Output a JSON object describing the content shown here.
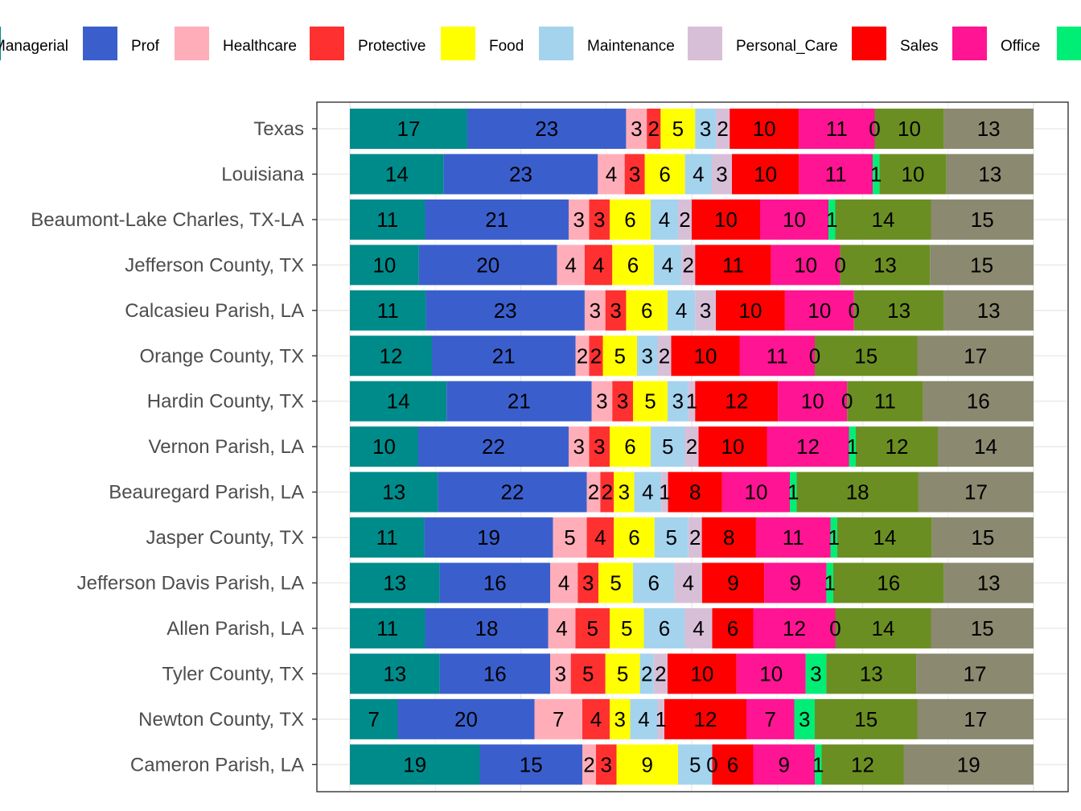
{
  "chart_data": {
    "type": "bar",
    "orientation": "horizontal",
    "stacked": true,
    "normalized": true,
    "legend_position": "top",
    "grid": true,
    "series_names": [
      "Managerial",
      "Prof",
      "Healthcare",
      "Protective",
      "Food",
      "Maintenance",
      "Personal_Care",
      "Sales",
      "Office",
      "",
      "",
      ""
    ],
    "colors": [
      "#008B8B",
      "#3A5FCD",
      "#FFAEB9",
      "#FF3030",
      "#FFFF00",
      "#A4D3EE",
      "#D8BFD8",
      "#FF0000",
      "#FF1493",
      "#00EE76",
      "#6B8E23",
      "#8B8970"
    ],
    "categories": [
      "Texas",
      "Louisiana",
      "Beaumont-Lake Charles, TX-LA",
      "Jefferson County, TX",
      "Calcasieu Parish, LA",
      "Orange County, TX",
      "Hardin County, TX",
      "Vernon Parish, LA",
      "Beauregard Parish, LA",
      "Jasper County, TX",
      "Jefferson Davis Parish, LA",
      "Allen Parish, LA",
      "Tyler County, TX",
      "Newton County, TX",
      "Cameron Parish, LA"
    ],
    "values": [
      [
        17,
        23,
        3,
        2,
        5,
        3,
        2,
        10,
        11,
        0,
        10,
        13
      ],
      [
        14,
        23,
        4,
        3,
        6,
        4,
        3,
        10,
        11,
        1,
        10,
        13
      ],
      [
        11,
        21,
        3,
        3,
        6,
        4,
        2,
        10,
        10,
        1,
        14,
        15
      ],
      [
        10,
        20,
        4,
        4,
        6,
        4,
        2,
        11,
        10,
        0,
        13,
        15
      ],
      [
        11,
        23,
        3,
        3,
        6,
        4,
        3,
        10,
        10,
        0,
        13,
        13
      ],
      [
        12,
        21,
        2,
        2,
        5,
        3,
        2,
        10,
        11,
        0,
        15,
        17
      ],
      [
        14,
        21,
        3,
        3,
        5,
        3,
        1,
        12,
        10,
        0,
        11,
        16
      ],
      [
        10,
        22,
        3,
        3,
        6,
        5,
        2,
        10,
        12,
        1,
        12,
        14
      ],
      [
        13,
        22,
        2,
        2,
        3,
        4,
        1,
        8,
        10,
        1,
        18,
        17
      ],
      [
        11,
        19,
        5,
        4,
        6,
        5,
        2,
        8,
        11,
        1,
        14,
        15
      ],
      [
        13,
        16,
        4,
        3,
        5,
        6,
        4,
        9,
        9,
        1,
        16,
        13
      ],
      [
        11,
        18,
        4,
        5,
        5,
        6,
        4,
        6,
        12,
        0,
        14,
        15
      ],
      [
        13,
        16,
        3,
        5,
        5,
        2,
        2,
        10,
        10,
        3,
        13,
        17
      ],
      [
        7,
        20,
        7,
        4,
        3,
        4,
        1,
        12,
        7,
        3,
        15,
        17
      ],
      [
        19,
        15,
        2,
        3,
        9,
        5,
        0,
        6,
        9,
        1,
        12,
        19
      ]
    ],
    "xlim": [
      0,
      1
    ]
  }
}
